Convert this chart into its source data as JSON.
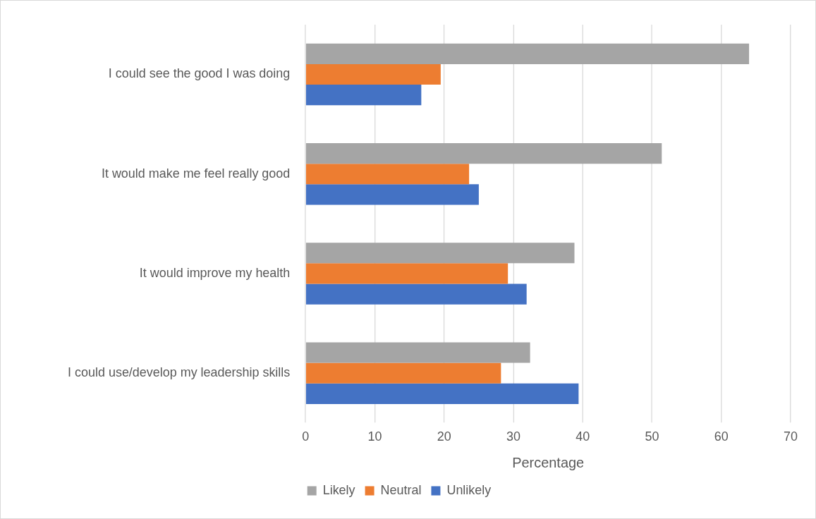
{
  "chart_data": {
    "type": "bar",
    "orientation": "horizontal",
    "xlabel": "Percentage",
    "categories": [
      "I could see the good I was doing",
      "It would make me feel really good",
      "It would improve my health",
      "I could use/develop my leadership skills"
    ],
    "series": [
      {
        "name": "Likely",
        "color": "#a5a5a5",
        "values": [
          64,
          51.4,
          38.8,
          32.4
        ]
      },
      {
        "name": "Neutral",
        "color": "#ed7d31",
        "values": [
          19.5,
          23.6,
          29.2,
          28.2
        ]
      },
      {
        "name": "Unlikely",
        "color": "#4472c4",
        "values": [
          16.7,
          25,
          31.9,
          39.4
        ]
      }
    ],
    "xlim": [
      0,
      70
    ],
    "xticks": [
      0,
      10,
      20,
      30,
      40,
      50,
      60,
      70
    ],
    "grid": "x",
    "legend": "bottom"
  }
}
